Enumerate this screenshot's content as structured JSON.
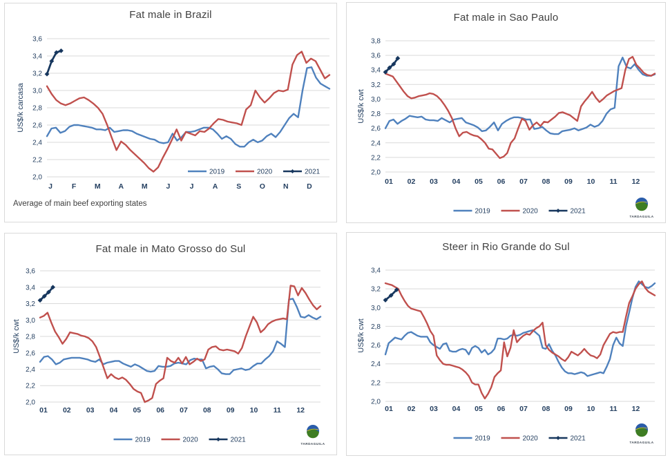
{
  "page": {
    "background": "#FFFFFF",
    "panel_border": "#D9D9D9"
  },
  "colors": {
    "series_2019": "#4F81BD",
    "series_2020": "#C0504D",
    "series_2021": "#17375E",
    "gridline": "#D9D9D9",
    "axis_text": "#254061",
    "title_text": "#404040"
  },
  "logo": {
    "text": "TARDAGUILA",
    "globe_blue": "#2A5CAA",
    "globe_green": "#3E7D23",
    "globe_yellow": "#E8C530"
  },
  "chart_data": {
    "charts": [
      {
        "type": "line",
        "title": "Fat male in Brazil",
        "ylabel": "US$/k carcasa",
        "footnote": "Average of main beef exporting states",
        "show_logo": false,
        "legend_position": "inside-right",
        "ymin": 2.0,
        "ymax": 3.6,
        "ystep": 0.2,
        "yticks": [
          "3,6",
          "3,4",
          "3,2",
          "3,0",
          "2,8",
          "2,6",
          "2,4",
          "2,2",
          "2,0"
        ],
        "xlabels": [
          "J",
          "F",
          "M",
          "A",
          "M",
          "J",
          "J",
          "A",
          "S",
          "O",
          "N",
          "D"
        ],
        "series": [
          {
            "name": "2019",
            "color_key": "series_2019",
            "values": [
              2.47,
              2.56,
              2.57,
              2.51,
              2.53,
              2.58,
              2.6,
              2.6,
              2.59,
              2.58,
              2.57,
              2.55,
              2.55,
              2.54,
              2.57,
              2.52,
              2.53,
              2.54,
              2.54,
              2.53,
              2.5,
              2.48,
              2.46,
              2.44,
              2.43,
              2.4,
              2.39,
              2.4,
              2.5,
              2.42,
              2.46,
              2.52,
              2.52,
              2.53,
              2.55,
              2.57,
              2.57,
              2.55,
              2.5,
              2.44,
              2.47,
              2.44,
              2.38,
              2.35,
              2.35,
              2.4,
              2.43,
              2.4,
              2.42,
              2.47,
              2.5,
              2.46,
              2.52,
              2.6,
              2.68,
              2.73,
              2.69,
              3.0,
              3.26,
              3.27,
              3.15,
              3.08,
              3.05,
              3.02
            ]
          },
          {
            "name": "2020",
            "color_key": "series_2020",
            "values": [
              3.05,
              2.96,
              2.89,
              2.85,
              2.83,
              2.85,
              2.88,
              2.91,
              2.92,
              2.89,
              2.85,
              2.8,
              2.73,
              2.6,
              2.45,
              2.31,
              2.41,
              2.37,
              2.31,
              2.26,
              2.21,
              2.16,
              2.1,
              2.06,
              2.11,
              2.22,
              2.32,
              2.43,
              2.55,
              2.42,
              2.52,
              2.5,
              2.48,
              2.53,
              2.52,
              2.56,
              2.62,
              2.67,
              2.66,
              2.64,
              2.63,
              2.62,
              2.6,
              2.78,
              2.83,
              3.0,
              2.92,
              2.86,
              2.91,
              2.97,
              3.0,
              2.99,
              3.01,
              3.3,
              3.41,
              3.45,
              3.32,
              3.37,
              3.34,
              3.24,
              3.14,
              3.18
            ]
          },
          {
            "name": "2021",
            "color_key": "series_2021",
            "marker": "diamond",
            "x_span": [
              0,
              0.6
            ],
            "values": [
              3.19,
              3.34,
              3.44,
              3.46
            ]
          }
        ]
      },
      {
        "type": "line",
        "title": "Fat male in Sao Paulo",
        "ylabel": "US$/k cwt",
        "show_logo": true,
        "legend_position": "below-center",
        "ymin": 2.0,
        "ymax": 3.8,
        "ystep": 0.2,
        "yticks": [
          "3,8",
          "3,6",
          "3,4",
          "3,2",
          "3,0",
          "2,8",
          "2,6",
          "2,4",
          "2,2",
          "2,0"
        ],
        "xlabels": [
          "01",
          "02",
          "03",
          "04",
          "05",
          "06",
          "07",
          "08",
          "09",
          "10",
          "11",
          "12"
        ],
        "series": [
          {
            "name": "2019",
            "color_key": "series_2019",
            "values": [
              2.6,
              2.7,
              2.72,
              2.66,
              2.7,
              2.73,
              2.77,
              2.76,
              2.75,
              2.76,
              2.72,
              2.71,
              2.71,
              2.7,
              2.74,
              2.71,
              2.68,
              2.72,
              2.73,
              2.74,
              2.68,
              2.66,
              2.64,
              2.61,
              2.56,
              2.57,
              2.62,
              2.68,
              2.57,
              2.66,
              2.7,
              2.73,
              2.75,
              2.75,
              2.74,
              2.72,
              2.72,
              2.59,
              2.6,
              2.62,
              2.57,
              2.53,
              2.52,
              2.52,
              2.56,
              2.57,
              2.58,
              2.6,
              2.57,
              2.59,
              2.61,
              2.65,
              2.62,
              2.64,
              2.7,
              2.8,
              2.86,
              2.88,
              3.45,
              3.57,
              3.44,
              3.42,
              3.48,
              3.4,
              3.34,
              3.32,
              3.32,
              3.34
            ]
          },
          {
            "name": "2020",
            "color_key": "series_2020",
            "values": [
              3.35,
              3.33,
              3.31,
              3.24,
              3.17,
              3.1,
              3.04,
              3.01,
              3.02,
              3.04,
              3.05,
              3.06,
              3.08,
              3.07,
              3.04,
              2.99,
              2.92,
              2.84,
              2.74,
              2.6,
              2.49,
              2.54,
              2.55,
              2.52,
              2.5,
              2.49,
              2.45,
              2.4,
              2.32,
              2.31,
              2.25,
              2.19,
              2.21,
              2.26,
              2.4,
              2.46,
              2.6,
              2.73,
              2.7,
              2.58,
              2.64,
              2.68,
              2.63,
              2.69,
              2.68,
              2.72,
              2.76,
              2.81,
              2.82,
              2.8,
              2.78,
              2.74,
              2.7,
              2.9,
              2.97,
              3.03,
              3.1,
              3.02,
              2.96,
              3.0,
              3.05,
              3.08,
              3.11,
              3.13,
              3.15,
              3.4,
              3.55,
              3.58,
              3.47,
              3.42,
              3.36,
              3.33,
              3.32,
              3.35
            ]
          },
          {
            "name": "2021",
            "color_key": "series_2021",
            "marker": "diamond",
            "x_span": [
              0,
              0.55
            ],
            "values": [
              3.37,
              3.43,
              3.48,
              3.56
            ]
          }
        ]
      },
      {
        "type": "line",
        "title": "Fat male in Mato Grosso do Sul",
        "ylabel": "US$/k cwt",
        "show_logo": true,
        "legend_position": "below-center",
        "ymin": 2.0,
        "ymax": 3.6,
        "ystep": 0.2,
        "yticks": [
          "3,6",
          "3,4",
          "3,2",
          "3,0",
          "2,8",
          "2,6",
          "2,4",
          "2,2",
          "2,0"
        ],
        "xlabels": [
          "01",
          "02",
          "03",
          "04",
          "05",
          "06",
          "07",
          "08",
          "09",
          "10",
          "11",
          "12"
        ],
        "series": [
          {
            "name": "2019",
            "color_key": "series_2019",
            "values": [
              2.49,
              2.55,
              2.56,
              2.52,
              2.46,
              2.48,
              2.52,
              2.53,
              2.54,
              2.54,
              2.54,
              2.53,
              2.52,
              2.5,
              2.49,
              2.52,
              2.46,
              2.48,
              2.49,
              2.5,
              2.5,
              2.47,
              2.45,
              2.43,
              2.46,
              2.44,
              2.41,
              2.38,
              2.37,
              2.38,
              2.44,
              2.43,
              2.43,
              2.44,
              2.47,
              2.48,
              2.47,
              2.46,
              2.51,
              2.53,
              2.52,
              2.52,
              2.41,
              2.43,
              2.44,
              2.4,
              2.35,
              2.34,
              2.34,
              2.39,
              2.4,
              2.41,
              2.39,
              2.4,
              2.44,
              2.47,
              2.47,
              2.52,
              2.56,
              2.62,
              2.74,
              2.71,
              2.67,
              3.25,
              3.26,
              3.16,
              3.04,
              3.03,
              3.06,
              3.03,
              3.01,
              3.04
            ]
          },
          {
            "name": "2020",
            "color_key": "series_2020",
            "values": [
              3.03,
              3.05,
              3.09,
              2.97,
              2.86,
              2.79,
              2.71,
              2.77,
              2.85,
              2.84,
              2.83,
              2.81,
              2.8,
              2.78,
              2.74,
              2.67,
              2.55,
              2.42,
              2.29,
              2.34,
              2.3,
              2.28,
              2.3,
              2.27,
              2.22,
              2.16,
              2.13,
              2.11,
              2.0,
              2.02,
              2.05,
              2.22,
              2.26,
              2.29,
              2.54,
              2.5,
              2.48,
              2.54,
              2.47,
              2.55,
              2.46,
              2.49,
              2.53,
              2.5,
              2.52,
              2.64,
              2.67,
              2.68,
              2.64,
              2.63,
              2.64,
              2.63,
              2.62,
              2.59,
              2.66,
              2.8,
              2.92,
              3.04,
              2.97,
              2.85,
              2.89,
              2.95,
              2.98,
              3.0,
              3.01,
              3.02,
              3.01,
              3.42,
              3.41,
              3.3,
              3.39,
              3.33,
              3.25,
              3.18,
              3.13,
              3.17
            ]
          },
          {
            "name": "2021",
            "color_key": "series_2021",
            "marker": "diamond",
            "x_span": [
              0,
              0.55
            ],
            "values": [
              3.24,
              3.29,
              3.34,
              3.4
            ]
          }
        ]
      },
      {
        "type": "line",
        "title": "Steer in Rio Grande do Sul",
        "ylabel": "US$/k cwt",
        "show_logo": true,
        "legend_position": "below-center",
        "ymin": 2.0,
        "ymax": 3.4,
        "ystep": 0.2,
        "yticks": [
          "3,4",
          "3,2",
          "3,0",
          "2,8",
          "2,6",
          "2,4",
          "2,2",
          "2,0"
        ],
        "xlabels": [
          "01",
          "02",
          "03",
          "04",
          "05",
          "06",
          "07",
          "08",
          "09",
          "10",
          "11",
          "12"
        ],
        "series": [
          {
            "name": "2019",
            "color_key": "series_2019",
            "values": [
              2.5,
              2.62,
              2.65,
              2.68,
              2.67,
              2.66,
              2.7,
              2.73,
              2.74,
              2.72,
              2.7,
              2.69,
              2.69,
              2.69,
              2.63,
              2.6,
              2.58,
              2.56,
              2.61,
              2.62,
              2.54,
              2.53,
              2.53,
              2.55,
              2.56,
              2.55,
              2.5,
              2.57,
              2.59,
              2.57,
              2.52,
              2.55,
              2.5,
              2.52,
              2.56,
              2.67,
              2.67,
              2.66,
              2.67,
              2.7,
              2.71,
              2.7,
              2.71,
              2.73,
              2.74,
              2.75,
              2.76,
              2.73,
              2.7,
              2.57,
              2.56,
              2.61,
              2.54,
              2.49,
              2.42,
              2.36,
              2.32,
              2.3,
              2.3,
              2.29,
              2.3,
              2.31,
              2.3,
              2.27,
              2.28,
              2.29,
              2.3,
              2.31,
              2.3,
              2.37,
              2.45,
              2.6,
              2.68,
              2.62,
              2.59,
              2.8,
              2.95,
              3.1,
              3.22,
              3.28,
              3.25,
              3.22,
              3.21,
              3.23,
              3.26
            ]
          },
          {
            "name": "2020",
            "color_key": "series_2020",
            "values": [
              3.26,
              3.25,
              3.24,
              3.22,
              3.2,
              3.13,
              3.07,
              3.02,
              2.99,
              2.98,
              2.97,
              2.96,
              2.9,
              2.83,
              2.75,
              2.7,
              2.49,
              2.44,
              2.4,
              2.39,
              2.39,
              2.38,
              2.37,
              2.36,
              2.34,
              2.31,
              2.27,
              2.2,
              2.18,
              2.18,
              2.09,
              2.03,
              2.08,
              2.15,
              2.26,
              2.3,
              2.33,
              2.63,
              2.48,
              2.57,
              2.76,
              2.63,
              2.67,
              2.7,
              2.72,
              2.71,
              2.75,
              2.78,
              2.8,
              2.84,
              2.6,
              2.55,
              2.52,
              2.5,
              2.48,
              2.45,
              2.43,
              2.47,
              2.53,
              2.51,
              2.49,
              2.52,
              2.56,
              2.52,
              2.49,
              2.48,
              2.46,
              2.5,
              2.6,
              2.66,
              2.72,
              2.74,
              2.73,
              2.74,
              2.74,
              2.9,
              3.05,
              3.12,
              3.2,
              3.25,
              3.28,
              3.21,
              3.17,
              3.15,
              3.13
            ]
          },
          {
            "name": "2021",
            "color_key": "series_2021",
            "marker": "diamond",
            "x_span": [
              0,
              0.5
            ],
            "values": [
              3.08,
              3.13,
              3.19
            ]
          }
        ]
      }
    ]
  }
}
